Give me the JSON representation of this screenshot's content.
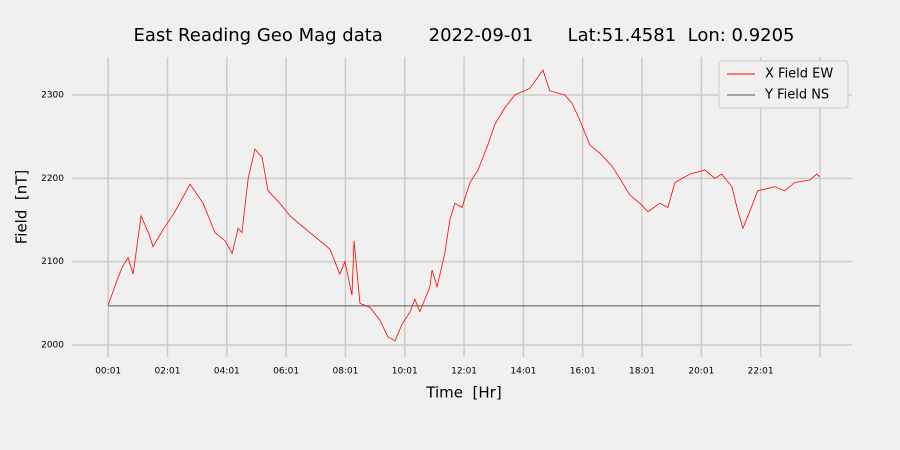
{
  "chart_data": {
    "type": "line",
    "title": "East Reading Geo Mag data        2022-09-01      Lat:51.4581  Lon: 0.9205",
    "x_label": "Time  [Hr]",
    "y_label": "Field  [nT]",
    "x": [
      0.02,
      0.29,
      0.49,
      0.69,
      0.86,
      1.13,
      1.43,
      1.53,
      1.9,
      2.27,
      2.78,
      3.22,
      3.62,
      3.96,
      4.2,
      4.4,
      4.53,
      4.74,
      4.97,
      5.21,
      5.41,
      5.81,
      6.15,
      6.48,
      6.99,
      7.5,
      7.83,
      8.0,
      8.24,
      8.31,
      8.51,
      8.85,
      9.18,
      9.45,
      9.69,
      9.93,
      10.2,
      10.36,
      10.53,
      10.87,
      10.94,
      11.11,
      11.37,
      11.54,
      11.71,
      11.95,
      12.22,
      12.49,
      12.82,
      13.06,
      13.4,
      13.73,
      14.24,
      14.68,
      14.91,
      15.42,
      15.66,
      15.92,
      16.26,
      16.6,
      17.0,
      17.27,
      17.61,
      17.95,
      18.22,
      18.62,
      18.89,
      19.13,
      19.63,
      20.14,
      20.47,
      20.71,
      21.05,
      21.22,
      21.42,
      21.65,
      21.92,
      22.5,
      22.83,
      23.17,
      23.68,
      23.91,
      24.01
    ],
    "series": [
      {
        "name": "X Field EW",
        "color": "#ff0000",
        "values": [
          2048,
          2075,
          2093,
          2105,
          2085,
          2155,
          2130,
          2118,
          2140,
          2160,
          2193,
          2170,
          2135,
          2125,
          2110,
          2140,
          2135,
          2200,
          2235,
          2225,
          2185,
          2170,
          2155,
          2145,
          2130,
          2115,
          2085,
          2100,
          2060,
          2125,
          2050,
          2045,
          2030,
          2010,
          2005,
          2025,
          2040,
          2055,
          2040,
          2070,
          2090,
          2070,
          2110,
          2150,
          2170,
          2165,
          2195,
          2210,
          2240,
          2265,
          2285,
          2300,
          2308,
          2330,
          2305,
          2300,
          2290,
          2270,
          2240,
          2230,
          2215,
          2200,
          2180,
          2170,
          2160,
          2170,
          2165,
          2195,
          2205,
          2210,
          2200,
          2205,
          2190,
          2165,
          2140,
          2160,
          2185,
          2190,
          2185,
          2195,
          2198,
          2205,
          2202
        ]
      },
      {
        "name": "Y Field NS",
        "color": "#555555",
        "values": [
          2047,
          2047,
          2047,
          2047,
          2047,
          2047,
          2047,
          2047,
          2047,
          2047,
          2047,
          2047,
          2047,
          2047,
          2047,
          2047,
          2047,
          2047,
          2047,
          2047,
          2047,
          2047,
          2047,
          2047,
          2047,
          2047,
          2047,
          2047,
          2047,
          2047,
          2047,
          2047,
          2047,
          2047,
          2047,
          2047,
          2047,
          2047,
          2047,
          2047,
          2047,
          2047,
          2047,
          2047,
          2047,
          2047,
          2047,
          2047,
          2047,
          2047,
          2047,
          2047,
          2047,
          2047,
          2047,
          2047,
          2047,
          2047,
          2047,
          2047,
          2047,
          2047,
          2047,
          2047,
          2047,
          2047,
          2047,
          2047,
          2047,
          2047,
          2047,
          2047,
          2047,
          2047,
          2047,
          2047,
          2047,
          2047,
          2047,
          2047,
          2047,
          2047,
          2047
        ]
      }
    ],
    "xlim": [
      -1.2,
      25.1
    ],
    "xticks": [
      {
        "value": 0.02,
        "label": "00:01"
      },
      {
        "value": 2.02,
        "label": "02:01"
      },
      {
        "value": 4.02,
        "label": "04:01"
      },
      {
        "value": 6.02,
        "label": "06:01"
      },
      {
        "value": 8.02,
        "label": "08:01"
      },
      {
        "value": 10.02,
        "label": "10:01"
      },
      {
        "value": 12.02,
        "label": "12:01"
      },
      {
        "value": 14.02,
        "label": "14:01"
      },
      {
        "value": 16.02,
        "label": "16:01"
      },
      {
        "value": 18.02,
        "label": "18:01"
      },
      {
        "value": 20.02,
        "label": "20:01"
      },
      {
        "value": 22.02,
        "label": "22:01"
      },
      {
        "value": 24.02,
        "label": null
      }
    ],
    "ylim": [
      1985.6,
      2345.6
    ],
    "yticks": [
      2000,
      2100,
      2200,
      2300
    ],
    "grid": true,
    "legend": "upper right"
  }
}
